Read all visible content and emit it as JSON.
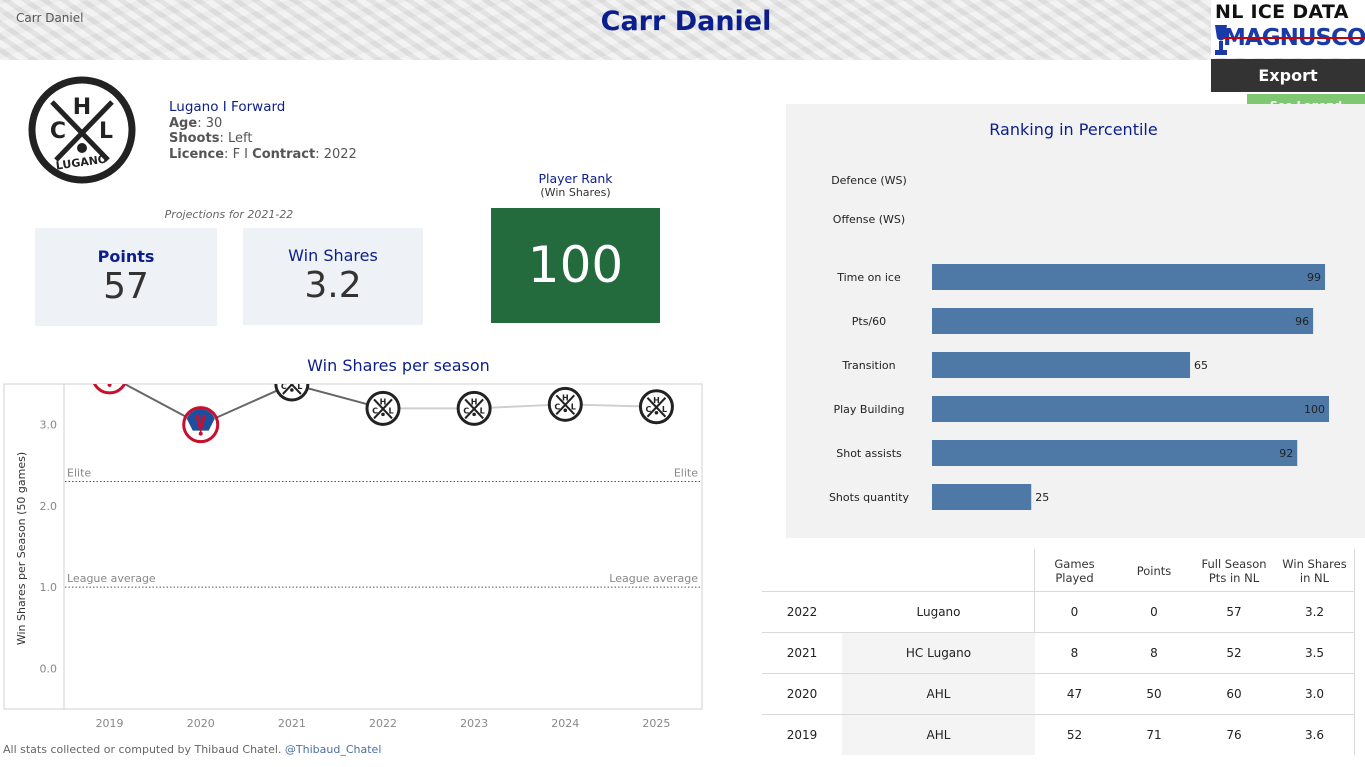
{
  "header": {
    "player_small": "Carr Daniel",
    "title": "Carr Daniel",
    "brand_line1": "NL ICE DATA",
    "brand_line2": "MAGNUSCORSI"
  },
  "actions": {
    "export_label": "Export",
    "legend_label": "See Legend"
  },
  "player": {
    "team_position": "Lugano  I  Forward",
    "age_label": "Age",
    "age": "30",
    "shoots_label": "Shoots",
    "shoots": "Left",
    "licence_label": "Licence",
    "licence": "F I",
    "contract_label": "Contract",
    "contract": "2022",
    "logo_team_text": "LUGANO"
  },
  "projections": {
    "caption": "Projections for 2021-22",
    "points_label": "Points",
    "points": "57",
    "ws_label": "Win Shares",
    "ws": "3.2"
  },
  "rank": {
    "title": "Player Rank",
    "subtitle": "(Win Shares)",
    "value": "100"
  },
  "ws_chart": {
    "title": "Win Shares per season",
    "ylabel": "Win Shares per Season (50 games)",
    "elite_label": "Elite",
    "league_label": "League average"
  },
  "ranking": {
    "title": "Ranking in Percentile"
  },
  "chart_data": [
    {
      "type": "line",
      "title": "Win Shares per season",
      "ylabel": "Win Shares per Season (50 games)",
      "x": [
        "2019",
        "2020",
        "2021",
        "2022",
        "2023",
        "2024",
        "2025"
      ],
      "series": [
        {
          "values": [
            3.6,
            3.0,
            3.5,
            3.2,
            3.2,
            3.25,
            3.22
          ],
          "markers": [
            "AHL",
            "AHL",
            "HC Lugano",
            "HC Lugano",
            "HC Lugano",
            "HC Lugano",
            "HC Lugano"
          ]
        }
      ],
      "projected_from": "2023",
      "reference_lines": [
        {
          "label": "Elite",
          "value": 2.3
        },
        {
          "label": "League average",
          "value": 1.0
        }
      ],
      "yticks": [
        0.0,
        1.0,
        2.0,
        3.0
      ],
      "ylim": [
        -0.5,
        3.5
      ],
      "grid": false
    },
    {
      "type": "bar",
      "orientation": "horizontal",
      "title": "Ranking in Percentile",
      "categories": [
        "Defence (WS)",
        "Offense (WS)",
        "Time on ice",
        "Pts/60",
        "Transition",
        "Play Building",
        "Shot assists",
        "Shots quantity"
      ],
      "values": [
        null,
        null,
        99,
        96,
        65,
        100,
        92,
        25
      ],
      "xlim": [
        0,
        100
      ],
      "color": "#4e79a7"
    },
    {
      "type": "table",
      "columns": [
        "",
        "",
        "Games Played",
        "Points",
        "Full Season Pts in NL",
        "Win Shares in NL"
      ],
      "rows": [
        [
          "2022",
          "Lugano",
          "0",
          "0",
          "57",
          "3.2"
        ],
        [
          "2021",
          "HC Lugano",
          "8",
          "8",
          "52",
          "3.5"
        ],
        [
          "2020",
          "AHL",
          "47",
          "50",
          "60",
          "3.0"
        ],
        [
          "2019",
          "AHL",
          "52",
          "71",
          "76",
          "3.6"
        ]
      ]
    }
  ],
  "footer": {
    "credit": "All stats collected or computed by Thibaud Chatel.",
    "handle": "@Thibaud_Chatel"
  },
  "colors": {
    "title_blue": "#0a1e8c",
    "rank_green": "#236b3c",
    "bar_blue": "#4e79a7",
    "legend_green": "#7ec872"
  }
}
